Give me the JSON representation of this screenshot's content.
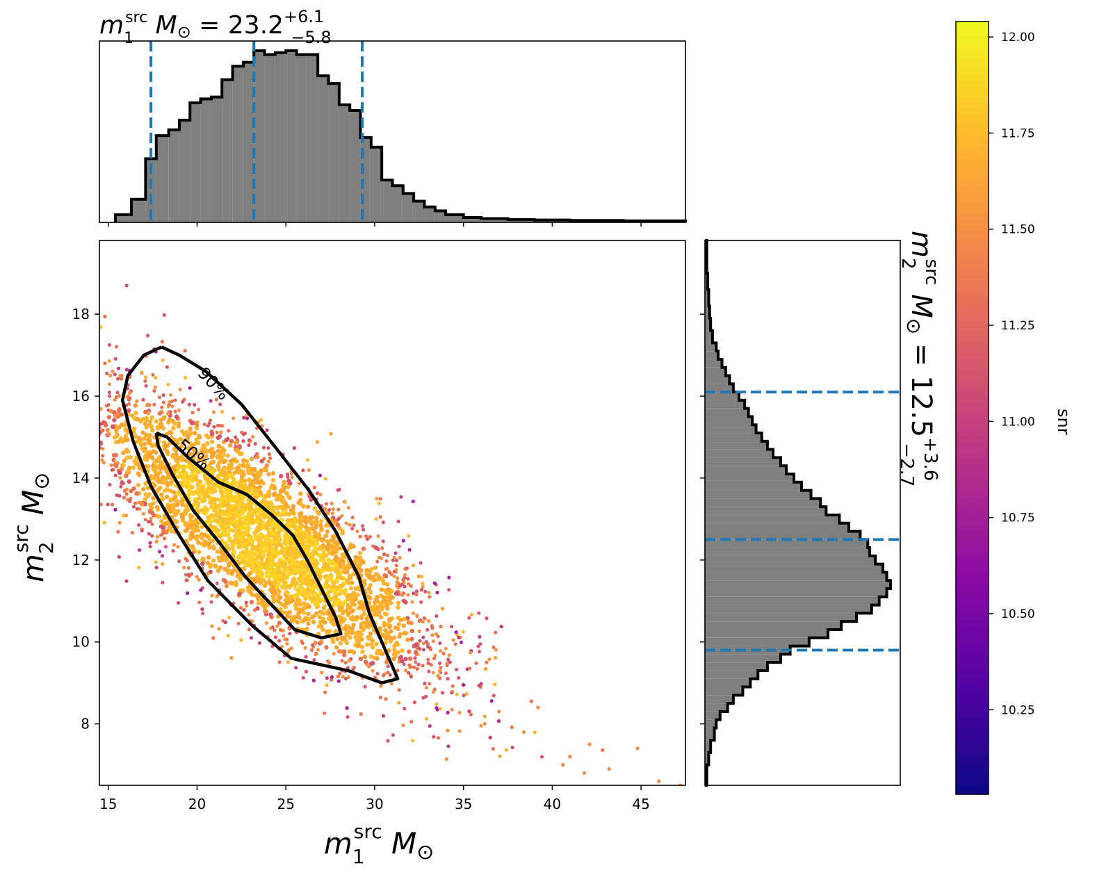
{
  "chart_data": [
    {
      "type": "histogram",
      "panel": "top-marginal",
      "title_prefix": "m",
      "title_sub": "1",
      "title_sup": "src",
      "title_unit": "M",
      "title_sun": "⊙",
      "title_eq": " = 23.2",
      "title_plus": "+6.1",
      "title_minus": "−5.8",
      "xlim": [
        14.5,
        47.5
      ],
      "quantiles": [
        17.4,
        23.2,
        29.3
      ],
      "bin_edges": [
        15.4,
        16.3,
        17.1,
        17.7,
        18.4,
        19.0,
        19.6,
        20.2,
        20.8,
        21.4,
        22.0,
        22.6,
        23.2,
        23.8,
        24.4,
        25.0,
        25.6,
        26.2,
        26.8,
        27.4,
        28.0,
        28.6,
        29.2,
        29.8,
        30.4,
        31.0,
        31.6,
        32.2,
        32.8,
        33.4,
        34.0,
        35.0,
        36.0,
        37.5,
        39.0,
        41.0,
        44.0,
        47.5
      ],
      "counts": [
        0.04,
        0.12,
        0.33,
        0.45,
        0.48,
        0.53,
        0.62,
        0.64,
        0.65,
        0.74,
        0.81,
        0.83,
        0.89,
        0.87,
        0.88,
        0.89,
        0.87,
        0.87,
        0.76,
        0.72,
        0.61,
        0.58,
        0.44,
        0.39,
        0.22,
        0.19,
        0.15,
        0.11,
        0.08,
        0.06,
        0.04,
        0.025,
        0.02,
        0.015,
        0.012,
        0.01,
        0.008
      ]
    },
    {
      "type": "scatter",
      "panel": "joint",
      "xlabel": "m",
      "xlabel_sub": "1",
      "xlabel_sup": "src",
      "xlabel_unit": "M",
      "xlabel_sun": "⊙",
      "ylabel": "m",
      "ylabel_sub": "2",
      "ylabel_sup": "src",
      "ylabel_unit": "M",
      "ylabel_sun": "⊙",
      "xlim": [
        14.5,
        47.5
      ],
      "ylim": [
        6.5,
        19.8
      ],
      "xticks": [
        15,
        20,
        25,
        30,
        35,
        40,
        45
      ],
      "yticks": [
        8,
        10,
        12,
        14,
        16,
        18
      ],
      "color_by": "snr",
      "contour_labels": [
        "90%",
        "50%"
      ],
      "contour_90": [
        [
          18.0,
          17.2
        ],
        [
          19.0,
          17.0
        ],
        [
          20.5,
          16.6
        ],
        [
          22.5,
          15.8
        ],
        [
          24.5,
          14.7
        ],
        [
          26.3,
          13.7
        ],
        [
          27.8,
          12.7
        ],
        [
          29.1,
          11.6
        ],
        [
          29.7,
          10.7
        ],
        [
          30.7,
          9.7
        ],
        [
          31.3,
          9.1
        ],
        [
          30.4,
          9.0
        ],
        [
          28.5,
          9.3
        ],
        [
          25.3,
          9.6
        ],
        [
          23.1,
          10.4
        ],
        [
          20.6,
          11.5
        ],
        [
          19.0,
          12.6
        ],
        [
          17.4,
          13.8
        ],
        [
          16.4,
          14.9
        ],
        [
          15.8,
          15.9
        ],
        [
          16.1,
          16.5
        ],
        [
          17.0,
          17.0
        ],
        [
          18.0,
          17.2
        ]
      ],
      "contour_50": [
        [
          17.7,
          15.1
        ],
        [
          18.3,
          15.0
        ],
        [
          19.5,
          14.5
        ],
        [
          21.2,
          13.9
        ],
        [
          22.8,
          13.6
        ],
        [
          24.2,
          13.1
        ],
        [
          25.4,
          12.6
        ],
        [
          26.2,
          12.0
        ],
        [
          27.0,
          11.3
        ],
        [
          27.8,
          10.6
        ],
        [
          28.1,
          10.2
        ],
        [
          27.0,
          10.1
        ],
        [
          25.5,
          10.3
        ],
        [
          24.2,
          10.9
        ],
        [
          22.7,
          11.6
        ],
        [
          21.3,
          12.4
        ],
        [
          19.8,
          13.2
        ],
        [
          18.6,
          14.1
        ],
        [
          17.8,
          14.8
        ],
        [
          17.7,
          15.1
        ]
      ]
    },
    {
      "type": "histogram",
      "panel": "right-marginal",
      "orientation": "horizontal",
      "label_prefix": "m",
      "label_sub": "2",
      "label_sup": "src",
      "label_unit": "M",
      "label_sun": "⊙",
      "label_eq": " = 12.5",
      "label_plus": "+3.6",
      "label_minus": "−2.7",
      "ylim": [
        6.5,
        19.8
      ],
      "quantiles": [
        9.8,
        12.5,
        16.1
      ],
      "bin_edges": [
        6.5,
        7.0,
        7.3,
        7.6,
        7.9,
        8.1,
        8.3,
        8.5,
        8.7,
        8.9,
        9.1,
        9.3,
        9.5,
        9.7,
        9.9,
        10.1,
        10.3,
        10.5,
        10.7,
        10.9,
        11.1,
        11.3,
        11.5,
        11.7,
        11.9,
        12.1,
        12.3,
        12.5,
        12.7,
        12.9,
        13.1,
        13.3,
        13.5,
        13.7,
        13.9,
        14.1,
        14.3,
        14.5,
        14.7,
        14.9,
        15.1,
        15.3,
        15.5,
        15.7,
        15.9,
        16.1,
        16.3,
        16.5,
        16.7,
        16.9,
        17.1,
        17.3,
        17.6,
        17.9,
        18.2,
        18.6,
        19.0,
        19.8
      ],
      "counts": [
        0.01,
        0.02,
        0.03,
        0.05,
        0.06,
        0.08,
        0.12,
        0.15,
        0.2,
        0.24,
        0.28,
        0.33,
        0.4,
        0.45,
        0.55,
        0.65,
        0.72,
        0.8,
        0.88,
        0.92,
        0.96,
        0.98,
        0.96,
        0.94,
        0.9,
        0.87,
        0.86,
        0.82,
        0.76,
        0.71,
        0.64,
        0.61,
        0.56,
        0.51,
        0.47,
        0.43,
        0.4,
        0.36,
        0.33,
        0.3,
        0.27,
        0.25,
        0.23,
        0.21,
        0.18,
        0.15,
        0.13,
        0.11,
        0.09,
        0.07,
        0.06,
        0.04,
        0.03,
        0.025,
        0.02,
        0.015,
        0.01
      ]
    },
    {
      "type": "colorbar",
      "label": "snr",
      "clim": [
        10.03,
        12.04
      ],
      "ticks": [
        "10.25",
        "10.50",
        "10.75",
        "11.00",
        "11.25",
        "11.50",
        "11.75",
        "12.00"
      ],
      "colormap": "plasma",
      "colors": [
        "#0d0887",
        "#5302a3",
        "#8b0aa5",
        "#b83289",
        "#db5c68",
        "#f48849",
        "#febd2a",
        "#f0f921"
      ]
    }
  ]
}
